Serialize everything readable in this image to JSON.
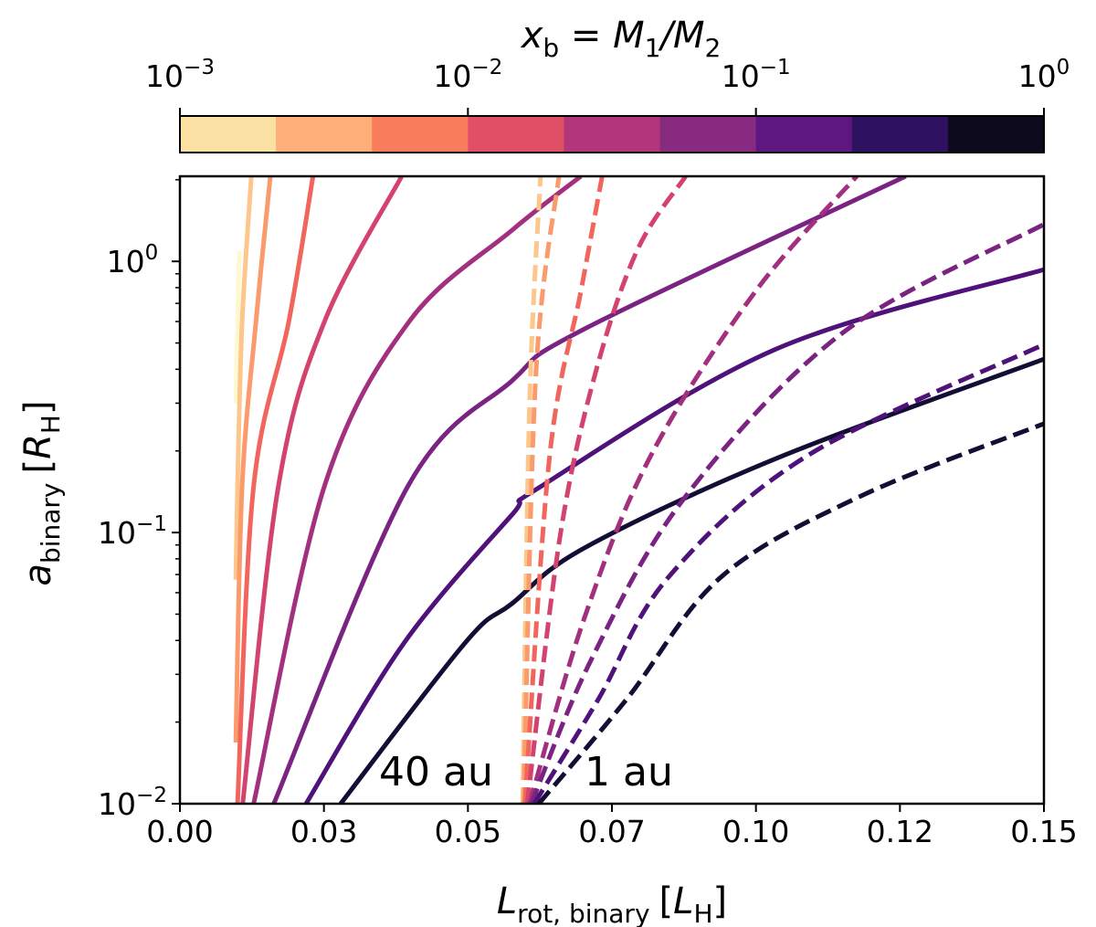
{
  "chart_data": {
    "type": "line",
    "title": "",
    "xlabel": {
      "main": "L",
      "sub": "rot, binary",
      "bracket_open": "[",
      "unit": "L",
      "unit_sub": "H",
      "bracket_close": "]"
    },
    "ylabel": {
      "main": "a",
      "sub": "binary",
      "bracket_open": "[",
      "unit": "R",
      "unit_sub": "H",
      "bracket_close": "]"
    },
    "xlim": [
      0,
      0.15
    ],
    "ylim": [
      0.01,
      2.06
    ],
    "yscale": "log",
    "grid": false,
    "xticks": [
      0,
      0.025,
      0.05,
      0.075,
      0.1,
      0.125,
      0.15
    ],
    "xtick_labels": [
      "0.00",
      "0.03",
      "0.05",
      "0.07",
      "0.10",
      "0.12",
      "0.15"
    ],
    "yticks": [
      0.01,
      0.1,
      1
    ],
    "ytick_labels": [
      {
        "base": "10",
        "exp": "−2"
      },
      {
        "base": "10",
        "exp": "−1"
      },
      {
        "base": "10",
        "exp": "0"
      }
    ],
    "colorbar": {
      "label": {
        "x": "x",
        "x_sub": "b",
        "eq": " = ",
        "m1": "M",
        "m1_sub": "1",
        "slash": "/",
        "m2": "M",
        "m2_sub": "2"
      },
      "range": [
        0.001,
        1
      ],
      "scale": "log",
      "colors": [
        "#fce1a4",
        "#fcaf77",
        "#f97c5d",
        "#e14f67",
        "#b3367a",
        "#872a80",
        "#5e1680",
        "#2e1160",
        "#0d0a1e"
      ],
      "ticks": [
        0.001,
        0.01,
        0.1,
        1
      ],
      "tick_labels": [
        {
          "base": "10",
          "exp": "−3"
        },
        {
          "base": "10",
          "exp": "−2"
        },
        {
          "base": "10",
          "exp": "−1"
        },
        {
          "base": "10",
          "exp": "0"
        }
      ]
    },
    "annotations": [
      "40 au",
      "1 au"
    ],
    "series": [
      {
        "name": "40 au k0",
        "style": "solid",
        "color": "#fcf3b0",
        "points": [
          [
            0.0097,
            0.3
          ],
          [
            0.0103,
            1.09
          ]
        ]
      },
      {
        "name": "40 au k1",
        "style": "solid",
        "color": "#fdc68b",
        "points": [
          [
            0.0097,
            0.067
          ],
          [
            0.01,
            0.1485
          ],
          [
            0.0108,
            0.6
          ],
          [
            0.0124,
            2.06
          ]
        ]
      },
      {
        "name": "40 au k2",
        "style": "solid",
        "color": "#fb9a6a",
        "points": [
          [
            0.0097,
            0.0168
          ],
          [
            0.0108,
            0.1485
          ],
          [
            0.0132,
            0.6
          ],
          [
            0.0157,
            2.06
          ]
        ]
      },
      {
        "name": "40 au k3",
        "style": "solid",
        "color": "#f2655c",
        "points": [
          [
            0.01,
            0.01
          ],
          [
            0.0128,
            0.1485
          ],
          [
            0.0189,
            0.6
          ],
          [
            0.0231,
            2.06
          ]
        ]
      },
      {
        "name": "40 au k4",
        "style": "solid",
        "color": "#d3436e",
        "points": [
          [
            0.0109,
            0.01
          ],
          [
            0.0171,
            0.1485
          ],
          [
            0.0251,
            0.6
          ],
          [
            0.0385,
            2.06
          ]
        ]
      },
      {
        "name": "40 au k5",
        "style": "solid",
        "color": "#a3307e",
        "points": [
          [
            0.0128,
            0.01
          ],
          [
            0.0251,
            0.1485
          ],
          [
            0.0398,
            0.6
          ],
          [
            0.0576,
            1.3
          ],
          [
            0.0696,
            2.06
          ]
        ]
      },
      {
        "name": "40 au k6",
        "style": "solid",
        "color": "#7a2382",
        "points": [
          [
            0.0163,
            0.01
          ],
          [
            0.0396,
            0.1485
          ],
          [
            0.0576,
            0.362
          ],
          [
            0.0702,
            0.563
          ],
          [
            0.126,
            2.06
          ]
        ]
      },
      {
        "name": "40 au k7",
        "style": "solid",
        "color": "#4f127b",
        "points": [
          [
            0.0219,
            0.01
          ],
          [
            0.039,
            0.0394
          ],
          [
            0.0576,
            0.116
          ],
          [
            0.0628,
            0.1485
          ],
          [
            0.1035,
            0.475
          ],
          [
            0.15,
            0.933
          ]
        ]
      },
      {
        "name": "40 au k8",
        "style": "solid",
        "color": "#140e36",
        "points": [
          [
            0.0279,
            0.01
          ],
          [
            0.0496,
            0.0394
          ],
          [
            0.0576,
            0.0546
          ],
          [
            0.0702,
            0.0877
          ],
          [
            0.1035,
            0.1875
          ],
          [
            0.15,
            0.436
          ]
        ]
      },
      {
        "name": "1 au k1",
        "style": "dashed",
        "color": "#fdc68b",
        "points": [
          [
            0.0595,
            0.01
          ],
          [
            0.0607,
            0.3
          ],
          [
            0.0626,
            2.06
          ]
        ]
      },
      {
        "name": "1 au k2",
        "style": "dashed",
        "color": "#fb9a6a",
        "points": [
          [
            0.0597,
            0.01
          ],
          [
            0.0618,
            0.385
          ],
          [
            0.0658,
            2.06
          ]
        ]
      },
      {
        "name": "1 au k3",
        "style": "dashed",
        "color": "#f2655c",
        "points": [
          [
            0.0599,
            0.01
          ],
          [
            0.0642,
            0.193
          ],
          [
            0.0696,
            0.774
          ],
          [
            0.0733,
            2.06
          ]
        ]
      },
      {
        "name": "1 au k4",
        "style": "dashed",
        "color": "#d3436e",
        "points": [
          [
            0.0603,
            0.01
          ],
          [
            0.066,
            0.097
          ],
          [
            0.0721,
            0.385
          ],
          [
            0.0794,
            1.1
          ],
          [
            0.0878,
            2.06
          ]
        ]
      },
      {
        "name": "1 au k5",
        "style": "dashed",
        "color": "#a3307e",
        "points": [
          [
            0.0607,
            0.01
          ],
          [
            0.0702,
            0.0483
          ],
          [
            0.0818,
            0.193
          ],
          [
            0.0999,
            0.774
          ],
          [
            0.1175,
            2.06
          ]
        ]
      },
      {
        "name": "1 au k6",
        "style": "dashed",
        "color": "#7a2382",
        "points": [
          [
            0.061,
            0.01
          ],
          [
            0.0715,
            0.0343
          ],
          [
            0.0878,
            0.136
          ],
          [
            0.1151,
            0.546
          ],
          [
            0.15,
            1.37
          ]
        ]
      },
      {
        "name": "1 au k7",
        "style": "dashed",
        "color": "#4f127b",
        "points": [
          [
            0.0615,
            0.01
          ],
          [
            0.0726,
            0.0242
          ],
          [
            0.0848,
            0.0684
          ],
          [
            0.1091,
            0.193
          ],
          [
            0.15,
            0.494
          ]
        ]
      },
      {
        "name": "1 au k8",
        "style": "dashed",
        "color": "#140e36",
        "points": [
          [
            0.0623,
            0.01
          ],
          [
            0.0775,
            0.0242
          ],
          [
            0.0939,
            0.0684
          ],
          [
            0.1181,
            0.136
          ],
          [
            0.15,
            0.252
          ]
        ]
      }
    ]
  }
}
